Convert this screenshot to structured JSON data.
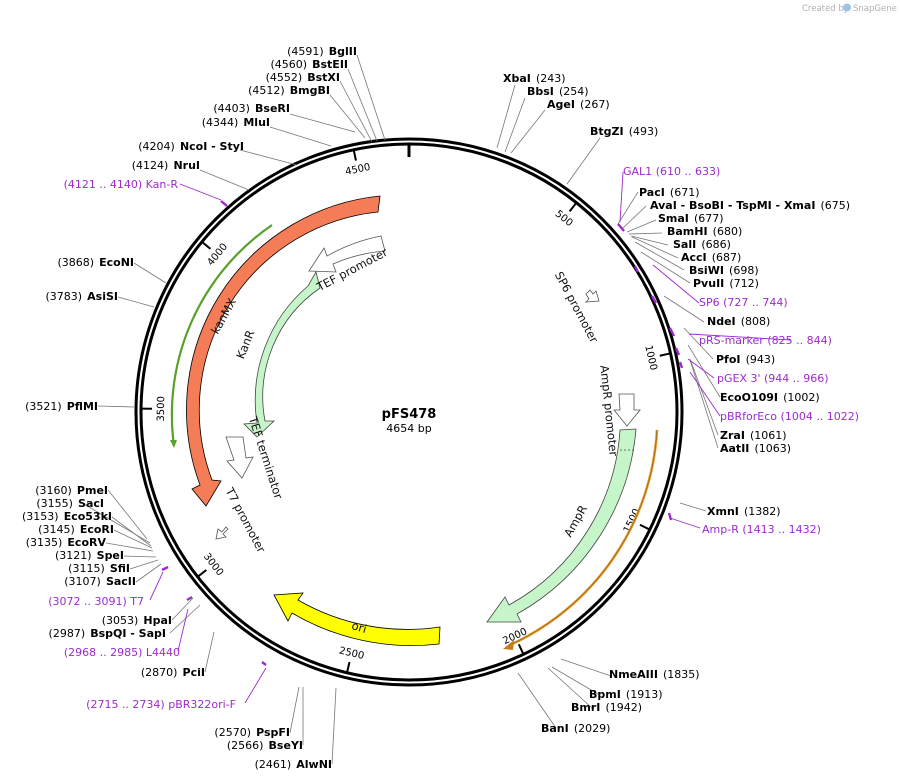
{
  "plasmid": {
    "name": "pFS478",
    "length_label": "4654 bp",
    "length": 4654
  },
  "credit": {
    "text": "Created by",
    "brand": "SnapGene"
  },
  "scale_ticks": [
    {
      "bp": 500,
      "label": "500"
    },
    {
      "bp": 1000,
      "label": "1000"
    },
    {
      "bp": 1500,
      "label": "1500"
    },
    {
      "bp": 2000,
      "label": "2000"
    },
    {
      "bp": 2500,
      "label": "2500"
    },
    {
      "bp": 3000,
      "label": "3000"
    },
    {
      "bp": 3500,
      "label": "3500"
    },
    {
      "bp": 4000,
      "label": "4000"
    },
    {
      "bp": 4500,
      "label": "4500"
    }
  ],
  "features": [
    {
      "id": "kanmx",
      "label": "kanMX",
      "color": "#f47c56",
      "type": "CDS"
    },
    {
      "id": "kanr",
      "label": "KanR",
      "color": "#c6f5c9",
      "type": "CDS"
    },
    {
      "id": "ampr",
      "label": "AmpR",
      "color": "#c6f5c9",
      "type": "CDS"
    },
    {
      "id": "ori",
      "label": "ori",
      "color": "#ffff00",
      "type": "rep_origin"
    },
    {
      "id": "tef-promoter",
      "label": "TEF promoter",
      "color": "#ffffff",
      "type": "promoter"
    },
    {
      "id": "tef-terminator",
      "label": "TEF terminator",
      "color": "#ffffff",
      "type": "terminator"
    },
    {
      "id": "sp6-promoter",
      "label": "SP6 promoter",
      "color": "#ffffff",
      "type": "promoter"
    },
    {
      "id": "ampr-promoter",
      "label": "AmpR promoter",
      "color": "#ffffff",
      "type": "promoter"
    },
    {
      "id": "t7-promoter",
      "label": "T7 promoter",
      "color": "#ffffff",
      "type": "promoter"
    }
  ],
  "sites": [
    {
      "name": "BglII",
      "pos": "(4591)"
    },
    {
      "name": "BstEII",
      "pos": "(4560)"
    },
    {
      "name": "BstXI",
      "pos": "(4552)"
    },
    {
      "name": "BmgBI",
      "pos": "(4512)"
    },
    {
      "name": "BseRI",
      "pos": "(4403)"
    },
    {
      "name": "MluI",
      "pos": "(4344)"
    },
    {
      "name": "NcoI",
      "extra": "- StyI",
      "pos": "(4204)"
    },
    {
      "name": "NruI",
      "pos": "(4124)"
    },
    {
      "name": "EcoNI",
      "pos": "(3868)"
    },
    {
      "name": "AsiSI",
      "pos": "(3783)"
    },
    {
      "name": "PflMI",
      "pos": "(3521)"
    },
    {
      "name": "PmeI",
      "pos": "(3160)"
    },
    {
      "name": "SacI",
      "pos": "(3155)"
    },
    {
      "name": "Eco53kI",
      "pos": "(3153)"
    },
    {
      "name": "EcoRI",
      "pos": "(3145)"
    },
    {
      "name": "EcoRV",
      "pos": "(3135)"
    },
    {
      "name": "SpeI",
      "pos": "(3121)"
    },
    {
      "name": "SfiI",
      "pos": "(3115)"
    },
    {
      "name": "SacII",
      "pos": "(3107)"
    },
    {
      "name": "HpaI",
      "pos": "(3053)"
    },
    {
      "name": "BspQI",
      "extra": "- SapI",
      "pos": "(2987)"
    },
    {
      "name": "PciI",
      "pos": "(2870)"
    },
    {
      "name": "PspFI",
      "pos": "(2570)"
    },
    {
      "name": "BseYI",
      "pos": "(2566)"
    },
    {
      "name": "AlwNI",
      "pos": "(2461)"
    },
    {
      "name": "XbaI",
      "pos": "(243)"
    },
    {
      "name": "BbsI",
      "pos": "(254)"
    },
    {
      "name": "AgeI",
      "pos": "(267)"
    },
    {
      "name": "BtgZI",
      "pos": "(493)"
    },
    {
      "name": "PacI",
      "pos": "(671)"
    },
    {
      "name": "AvaI",
      "extra": "- BsoBI   - TspMI   - XmaI",
      "pos": "(675)"
    },
    {
      "name": "SmaI",
      "pos": "(677)"
    },
    {
      "name": "BamHI",
      "pos": "(680)"
    },
    {
      "name": "SalI",
      "pos": "(686)"
    },
    {
      "name": "AccI",
      "pos": "(687)"
    },
    {
      "name": "BsiWI",
      "pos": "(698)"
    },
    {
      "name": "PvuII",
      "pos": "(712)"
    },
    {
      "name": "NdeI",
      "pos": "(808)"
    },
    {
      "name": "PfoI",
      "pos": "(943)"
    },
    {
      "name": "EcoO109I",
      "pos": "(1002)"
    },
    {
      "name": "ZraI",
      "pos": "(1061)"
    },
    {
      "name": "AatII",
      "pos": "(1063)"
    },
    {
      "name": "XmnI",
      "pos": "(1382)"
    },
    {
      "name": "NmeAIII",
      "pos": "(1835)"
    },
    {
      "name": "BpmI",
      "pos": "(1913)"
    },
    {
      "name": "BmrI",
      "pos": "(1942)"
    },
    {
      "name": "BanI",
      "pos": "(2029)"
    }
  ],
  "primers": [
    {
      "name": "GAL1",
      "pos": "(610 .. 633)"
    },
    {
      "name": "SP6",
      "pos": "(727 .. 744)"
    },
    {
      "name": "pRS-marker",
      "pos": "(825 .. 844)"
    },
    {
      "name": "pGEX 3'",
      "pos": "(944 .. 966)"
    },
    {
      "name": "pBRforEco",
      "pos": "(1004 .. 1022)"
    },
    {
      "name": "Amp-R",
      "pos": "(1413 .. 1432)"
    },
    {
      "name": "Kan-R",
      "pos": "(4121 .. 4140)"
    },
    {
      "name": "T7",
      "pos": "(3072 .. 3091)"
    },
    {
      "name": "L4440",
      "pos": "(2968 .. 2985)"
    },
    {
      "name": "pBR322ori-F",
      "pos": "(2715 .. 2734)"
    }
  ]
}
